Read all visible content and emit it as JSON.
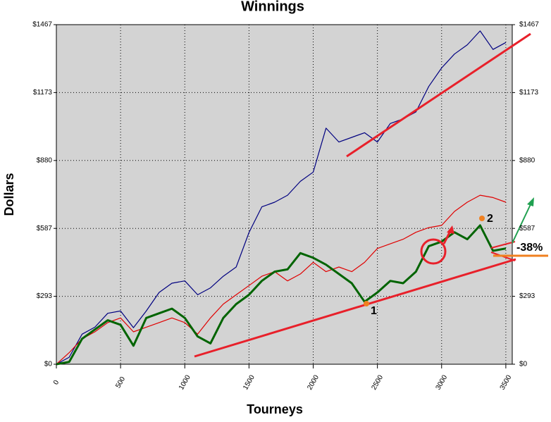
{
  "chart_data": {
    "type": "line",
    "title": "Winnings",
    "x_label": "Tourneys",
    "y_label": "Dollars",
    "x": [
      0,
      100,
      200,
      300,
      400,
      500,
      600,
      700,
      800,
      900,
      1000,
      1100,
      1200,
      1300,
      1400,
      1500,
      1600,
      1700,
      1800,
      1900,
      2000,
      2100,
      2200,
      2300,
      2400,
      2500,
      2600,
      2700,
      2800,
      2900,
      3000,
      3100,
      3200,
      3300,
      3400,
      3500
    ],
    "series": [
      {
        "color": "#000080",
        "values": [
          0,
          30,
          130,
          160,
          220,
          230,
          158,
          230,
          310,
          350,
          360,
          300,
          330,
          380,
          420,
          569,
          680,
          700,
          730,
          790,
          830,
          1020,
          960,
          980,
          1000,
          960,
          1040,
          1060,
          1090,
          1200,
          1280,
          1340,
          1380,
          1440,
          1360,
          1390
        ]
      },
      {
        "color": "#e00000",
        "values": [
          0,
          50,
          110,
          140,
          180,
          200,
          140,
          160,
          180,
          200,
          180,
          130,
          200,
          260,
          300,
          340,
          380,
          400,
          360,
          390,
          440,
          400,
          420,
          400,
          440,
          500,
          520,
          540,
          570,
          590,
          600,
          660,
          700,
          730,
          720,
          700
        ]
      },
      {
        "color": "#006400",
        "values": [
          0,
          10,
          110,
          150,
          190,
          170,
          80,
          200,
          220,
          240,
          200,
          120,
          90,
          200,
          260,
          300,
          360,
          400,
          410,
          480,
          460,
          430,
          390,
          350,
          270,
          310,
          360,
          350,
          400,
          510,
          530,
          570,
          540,
          600,
          490,
          500
        ]
      }
    ],
    "xlim": [
      0,
      3550
    ],
    "xticks": [
      0,
      500,
      1000,
      1500,
      2000,
      2500,
      3000,
      3500
    ],
    "ylim": [
      0,
      1467
    ],
    "yticks": [
      {
        "value": 0,
        "label": "$0"
      },
      {
        "value": 293.4,
        "label": "$293"
      },
      {
        "value": 586.8,
        "label": "$587"
      },
      {
        "value": 880.2,
        "label": "$880"
      },
      {
        "value": 1173.6,
        "label": "$1173"
      },
      {
        "value": 1467,
        "label": "$1467"
      }
    ],
    "grid": true,
    "annotations": [
      "1",
      "2",
      "-38%"
    ]
  }
}
